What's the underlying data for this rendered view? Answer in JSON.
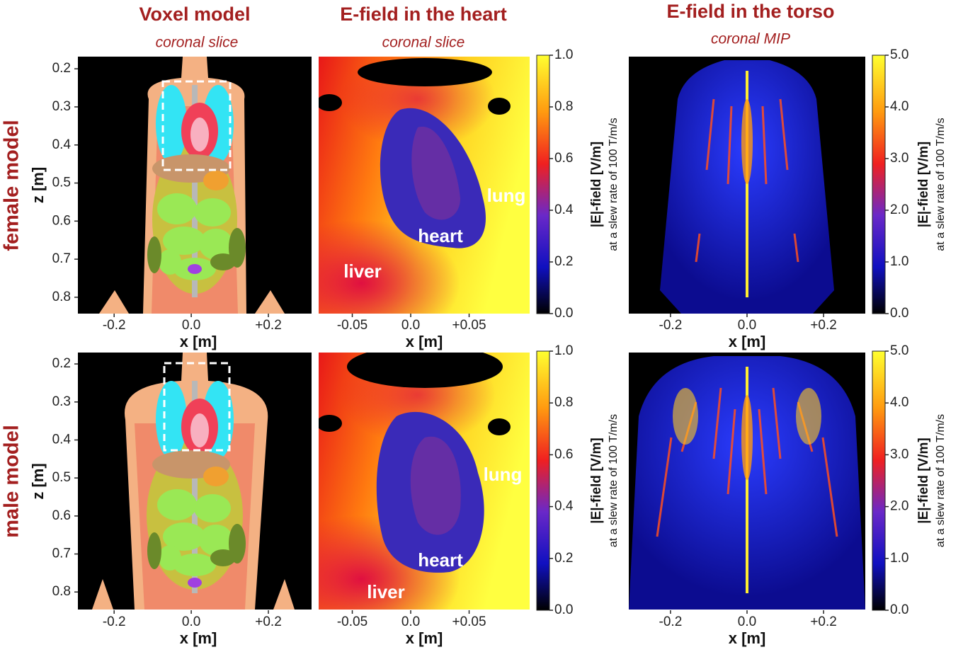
{
  "columns": [
    {
      "title": "Voxel model",
      "subtitle": "coronal slice"
    },
    {
      "title": "E-field in the heart",
      "subtitle": "coronal slice"
    },
    {
      "title": "E-field in the torso",
      "subtitle": "coronal MIP"
    }
  ],
  "rows": [
    "female model",
    "male model"
  ],
  "x_label": "x [m]",
  "z_label": "z [m]",
  "colorbar_label": "|E|-field [V/m]",
  "colorbar_sublabel": "at a slew rate of 100 T/m/s",
  "voxel": {
    "xlim": [
      -0.294,
      0.312
    ],
    "xticks": [
      -0.2,
      {
        "value": 0,
        "label": "0.0"
      },
      {
        "value": 0.2,
        "label": "+0.2"
      }
    ],
    "zaxes": [
      {
        "zlim": [
          0.168,
          0.843
        ],
        "zticks": [
          0.2,
          0.3,
          0.4,
          0.5,
          0.6,
          0.7,
          0.8
        ]
      },
      {
        "zlim": [
          0.17,
          0.848
        ],
        "zticks": [
          0.2,
          0.3,
          0.4,
          0.5,
          0.6,
          0.7,
          0.8
        ]
      }
    ]
  },
  "heart": {
    "xlim": [
      -0.0788,
      0.1018
    ],
    "xticks": [
      -0.05,
      {
        "value": 0,
        "label": "0.0"
      },
      {
        "value": 0.05,
        "label": "+0.05"
      }
    ],
    "colorbar": {
      "lim": [
        0,
        1
      ],
      "ticks": [
        {
          "value": 0,
          "label": "0.0"
        },
        0.2,
        0.4,
        0.6,
        0.8,
        {
          "value": 1,
          "label": "1.0"
        }
      ]
    },
    "annotations": [
      [
        "lung",
        "heart",
        "liver"
      ],
      [
        "lung",
        "heart",
        "liver"
      ]
    ]
  },
  "torso": {
    "xlim": [
      -0.309,
      0.309
    ],
    "xticks": [
      -0.2,
      {
        "value": 0,
        "label": "0.0"
      },
      {
        "value": 0.2,
        "label": "+0.2"
      }
    ],
    "colorbar": {
      "lim": [
        0,
        5
      ],
      "ticks": [
        {
          "value": 0,
          "label": "0.0"
        },
        {
          "value": 1,
          "label": "1.0"
        },
        {
          "value": 2,
          "label": "2.0"
        },
        {
          "value": 3,
          "label": "3.0"
        },
        {
          "value": 4,
          "label": "4.0"
        },
        {
          "value": 5,
          "label": "5.0"
        }
      ]
    }
  }
}
